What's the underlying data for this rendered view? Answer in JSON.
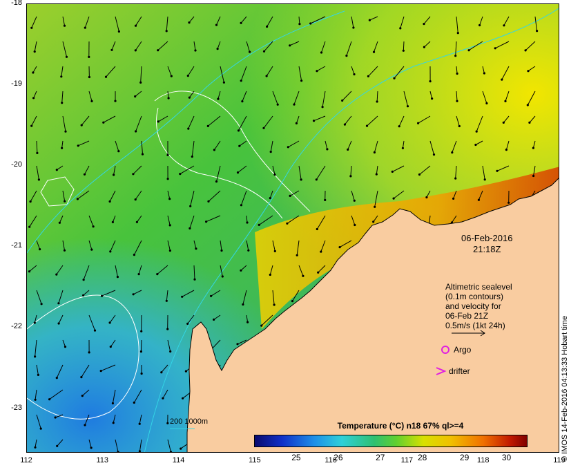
{
  "map": {
    "lon_ticks": [
      "112",
      "113",
      "114",
      "115",
      "116",
      "117",
      "118",
      "119"
    ],
    "lat_ticks": [
      "-18",
      "-19",
      "-20",
      "-21",
      "-22",
      "-23"
    ],
    "lon_range": [
      112,
      119
    ],
    "lat_range": [
      -23.55,
      -18
    ],
    "timestamp_date": "06-Feb-2016",
    "timestamp_time": "21:18Z",
    "legend_lines": [
      "Altimetric sealevel",
      "(0.1m contours)",
      "and velocity for",
      "06-Feb 21Z",
      "0.5m/s (1kt 24h)"
    ],
    "argo_label": "Argo",
    "drifter_label": "drifter",
    "depth_label": "200  1000m",
    "colorbar_title": "Temperature (°C) n18 67% ql>=4",
    "colorbar_ticks": [
      "25",
      "26",
      "27",
      "28",
      "29",
      "30"
    ],
    "colorbar_range": [
      24,
      30.5
    ],
    "credit": "© IMOS 14-Feb-2016 04:13:33 Hobart time",
    "colors": {
      "land": "#f9cca0",
      "contour": "#ffffff",
      "bathymetry": "#33d6e6",
      "argo_marker": "#e020e0",
      "arrow": "#000000"
    }
  }
}
